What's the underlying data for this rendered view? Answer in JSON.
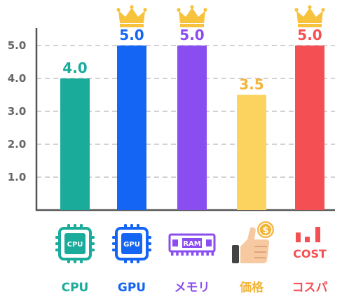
{
  "chart_data": {
    "type": "bar",
    "categories": [
      "CPU",
      "GPU",
      "メモリ",
      "価格",
      "コスパ"
    ],
    "values": [
      4.0,
      5.0,
      5.0,
      3.5,
      5.0
    ],
    "value_labels": [
      "4.0",
      "5.0",
      "5.0",
      "3.5",
      "5.0"
    ],
    "colors": [
      "#1aab9b",
      "#1565f5",
      "#8a4df0",
      "#fbd35e",
      "#f44f52"
    ],
    "label_colors": [
      "#1aab9b",
      "#1565f5",
      "#8a4df0",
      "#f2b53c",
      "#f44f52"
    ],
    "icons": [
      "cpu-chip-icon",
      "gpu-chip-icon",
      "ram-module-icon",
      "thumbs-up-coin-icon",
      "cost-bar-icon"
    ],
    "icon_texts": [
      "CPU",
      "GPU",
      "RAM",
      "$",
      "COST"
    ],
    "crown_on_max": true,
    "crown_color": "#f7c23c",
    "yticks": [
      "1.0",
      "2.0",
      "3.0",
      "4.0",
      "5.0"
    ],
    "ylim": [
      0,
      5.0
    ],
    "grid": true,
    "title": "",
    "xlabel": "",
    "ylabel": ""
  }
}
